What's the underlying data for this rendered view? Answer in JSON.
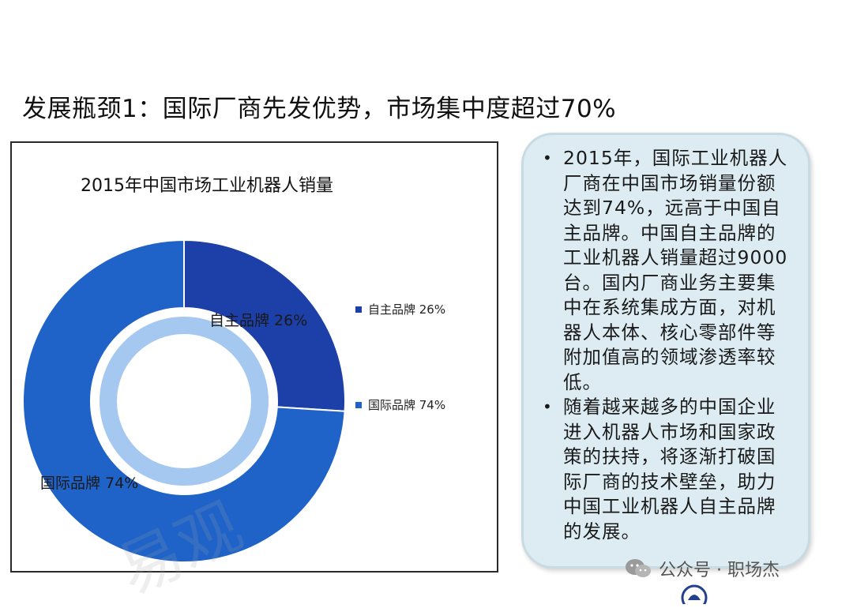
{
  "slide": {
    "title": "发展瓶颈1：国际厂商先发优势，市场集中度超过70%"
  },
  "chart_data": {
    "type": "pie",
    "variant": "donut",
    "title": "2015年中国市场工业机器人销量",
    "categories": [
      "自主品牌",
      "国际品牌"
    ],
    "values": [
      26,
      74
    ],
    "unit": "%",
    "data_labels": [
      "自主品牌 26%",
      "国际品牌 74%"
    ],
    "legend": {
      "position": "right",
      "items": [
        "自主品牌 26%",
        "国际品牌 74%"
      ]
    },
    "colors": [
      "#1c3fa8",
      "#1f63c8"
    ],
    "ring_highlight_color": "#5b9ae6"
  },
  "watermark": {
    "text": "易观"
  },
  "text_card": {
    "bullets": [
      "2015年，国际工业机器人厂商在中国市场销量份额达到74%，远高于中国自主品牌。中国自主品牌的工业机器人销量超过9000台。国内厂商业务主要集中在系统集成方面，对机器人本体、核心零部件等附加值高的领域渗透率较低。",
      "随着越来越多的中国企业进入机器人市场和国家政策的扶持，将逐渐打破国际厂商的技术壁垒，助力中国工业机器人自主品牌的发展。"
    ]
  },
  "footer": {
    "source_label": "公众号 · 职场杰",
    "icon": "wechat-icon"
  }
}
